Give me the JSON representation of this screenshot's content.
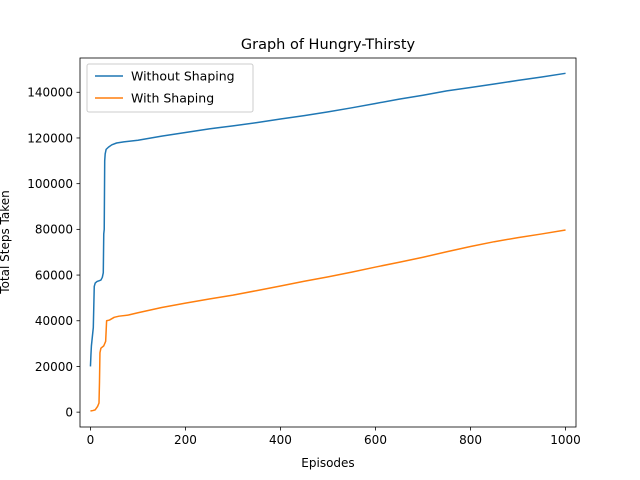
{
  "chart_data": {
    "type": "line",
    "title": "Graph of Hungry-Thirsty",
    "xlabel": "Episodes",
    "ylabel": "Total Steps Taken",
    "xlim": [
      -22,
      1022
    ],
    "ylim": [
      -6500,
      155000
    ],
    "xticks": [
      0,
      200,
      400,
      600,
      800,
      1000
    ],
    "xtick_labels": [
      "0",
      "200",
      "400",
      "600",
      "800",
      "1000"
    ],
    "yticks": [
      0,
      20000,
      40000,
      60000,
      80000,
      100000,
      120000,
      140000
    ],
    "ytick_labels": [
      "0",
      "20000",
      "40000",
      "60000",
      "80000",
      "100000",
      "120000",
      "140000"
    ],
    "grid": false,
    "legend_position": "upper-left",
    "series": [
      {
        "name": "Without Shaping",
        "color": "#1f77b4",
        "points": [
          [
            0,
            20000
          ],
          [
            1,
            25000
          ],
          [
            2,
            29000
          ],
          [
            4,
            33000
          ],
          [
            6,
            37000
          ],
          [
            8,
            55000
          ],
          [
            10,
            56500
          ],
          [
            14,
            57200
          ],
          [
            18,
            57500
          ],
          [
            22,
            57800
          ],
          [
            25,
            59000
          ],
          [
            27,
            61000
          ],
          [
            28,
            78000
          ],
          [
            29,
            80000
          ],
          [
            30,
            110000
          ],
          [
            31,
            113000
          ],
          [
            33,
            115000
          ],
          [
            38,
            116000
          ],
          [
            45,
            117000
          ],
          [
            55,
            117800
          ],
          [
            70,
            118300
          ],
          [
            100,
            119000
          ],
          [
            150,
            120800
          ],
          [
            200,
            122400
          ],
          [
            250,
            124000
          ],
          [
            300,
            125300
          ],
          [
            350,
            126700
          ],
          [
            400,
            128300
          ],
          [
            450,
            129800
          ],
          [
            500,
            131400
          ],
          [
            550,
            133200
          ],
          [
            600,
            135100
          ],
          [
            650,
            137000
          ],
          [
            700,
            138700
          ],
          [
            750,
            140600
          ],
          [
            800,
            142100
          ],
          [
            850,
            143600
          ],
          [
            900,
            145200
          ],
          [
            950,
            146700
          ],
          [
            1000,
            148300
          ]
        ]
      },
      {
        "name": "With Shaping",
        "color": "#ff7f0e",
        "points": [
          [
            0,
            500
          ],
          [
            5,
            700
          ],
          [
            10,
            1000
          ],
          [
            15,
            2500
          ],
          [
            18,
            4000
          ],
          [
            19,
            13000
          ],
          [
            20,
            26000
          ],
          [
            22,
            28000
          ],
          [
            28,
            29000
          ],
          [
            32,
            31000
          ],
          [
            34,
            40000
          ],
          [
            40,
            40300
          ],
          [
            50,
            41500
          ],
          [
            60,
            42000
          ],
          [
            80,
            42500
          ],
          [
            100,
            43500
          ],
          [
            150,
            45800
          ],
          [
            200,
            47700
          ],
          [
            250,
            49500
          ],
          [
            300,
            51200
          ],
          [
            350,
            53200
          ],
          [
            400,
            55200
          ],
          [
            450,
            57300
          ],
          [
            500,
            59200
          ],
          [
            550,
            61300
          ],
          [
            600,
            63500
          ],
          [
            650,
            65600
          ],
          [
            700,
            67800
          ],
          [
            750,
            70200
          ],
          [
            800,
            72500
          ],
          [
            850,
            74600
          ],
          [
            900,
            76400
          ],
          [
            950,
            78000
          ],
          [
            1000,
            79700
          ]
        ]
      }
    ]
  }
}
